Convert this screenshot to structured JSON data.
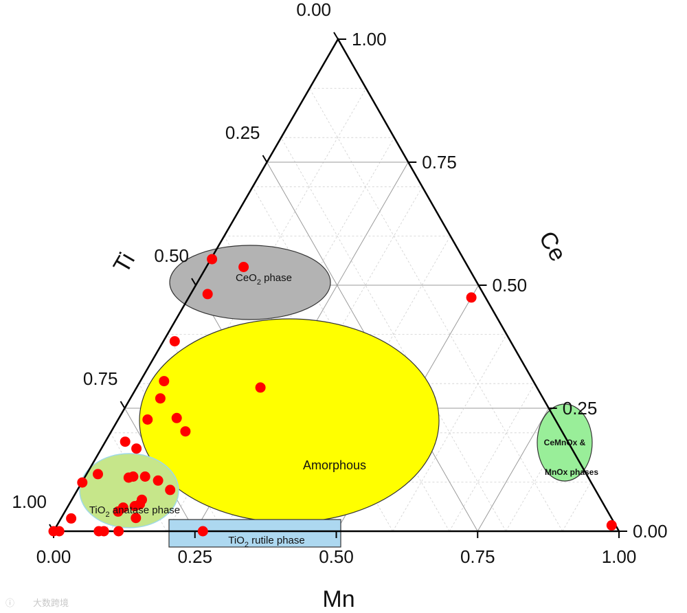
{
  "chart_data": {
    "type": "scatter",
    "subtype": "ternary",
    "axes": {
      "bottom": {
        "title": "Mn",
        "ticks": [
          "0.00",
          "0.25",
          "0.50",
          "0.75",
          "1.00"
        ]
      },
      "right": {
        "title": "Ce",
        "ticks": [
          "0.00",
          "0.25",
          "0.50",
          "0.75",
          "1.00"
        ]
      },
      "left": {
        "title": "Ti",
        "ticks": [
          "0.00",
          "0.25",
          "0.50",
          "0.75",
          "1.00"
        ]
      }
    },
    "grid": true,
    "points_color": "#ff0000",
    "points": [
      {
        "mn": 0.002,
        "ce": 0.553
      },
      {
        "mn": 0.066,
        "ce": 0.537
      },
      {
        "mn": 0.03,
        "ce": 0.482
      },
      {
        "mn": 0.02,
        "ce": 0.386
      },
      {
        "mn": 0.042,
        "ce": 0.305
      },
      {
        "mn": 0.053,
        "ce": 0.27
      },
      {
        "mn": 0.052,
        "ce": 0.227
      },
      {
        "mn": 0.035,
        "ce": 0.182
      },
      {
        "mn": 0.062,
        "ce": 0.168
      },
      {
        "mn": 0.102,
        "ce": 0.23
      },
      {
        "mn": 0.131,
        "ce": 0.203
      },
      {
        "mn": 0.106,
        "ce": 0.111
      },
      {
        "mn": 0.133,
        "ce": 0.103
      },
      {
        "mn": 0.164,
        "ce": 0.084
      },
      {
        "mn": 0.219,
        "ce": 0.292
      },
      {
        "mn": 0.001,
        "ce": 0.099
      },
      {
        "mn": 0.02,
        "ce": 0.116
      },
      {
        "mn": 0.078,
        "ce": 0.109
      },
      {
        "mn": 0.085,
        "ce": 0.111
      },
      {
        "mn": 0.124,
        "ce": 0.064
      },
      {
        "mn": 0.125,
        "ce": 0.055
      },
      {
        "mn": 0.094,
        "ce": 0.04
      },
      {
        "mn": 0.099,
        "ce": 0.048
      },
      {
        "mn": 0.118,
        "ce": 0.051
      },
      {
        "mn": 0.018,
        "ce": 0.026
      },
      {
        "mn": 0.132,
        "ce": 0.027
      },
      {
        "mn": 0.01,
        "ce": 0.0
      },
      {
        "mn": 0.08,
        "ce": 0.0
      },
      {
        "mn": 0.089,
        "ce": 0.0
      },
      {
        "mn": 0.115,
        "ce": 0.0
      },
      {
        "mn": 0.264,
        "ce": 0.0
      },
      {
        "mn": 0.0,
        "ce": 0.0
      },
      {
        "mn": 0.5,
        "ce": 0.475
      },
      {
        "mn": 0.981,
        "ce": 0.012
      }
    ],
    "regions": [
      {
        "label": "CeO",
        "sub": "2",
        "suffix": " phase",
        "color": "#b3b3b3"
      },
      {
        "label": "Amorphous",
        "sub": "",
        "suffix": "",
        "color": "#ffff00"
      },
      {
        "label": "TiO",
        "sub": "2",
        "suffix": " anatase phase",
        "color": "#c6e68a"
      },
      {
        "label": "TiO",
        "sub": "2",
        "suffix": " rutile phase",
        "color": "#add8f0"
      },
      {
        "label": "CeMnOx &",
        "label2": "MnOx phases",
        "color": "#99ee99"
      }
    ]
  },
  "watermark": "大数跨境"
}
